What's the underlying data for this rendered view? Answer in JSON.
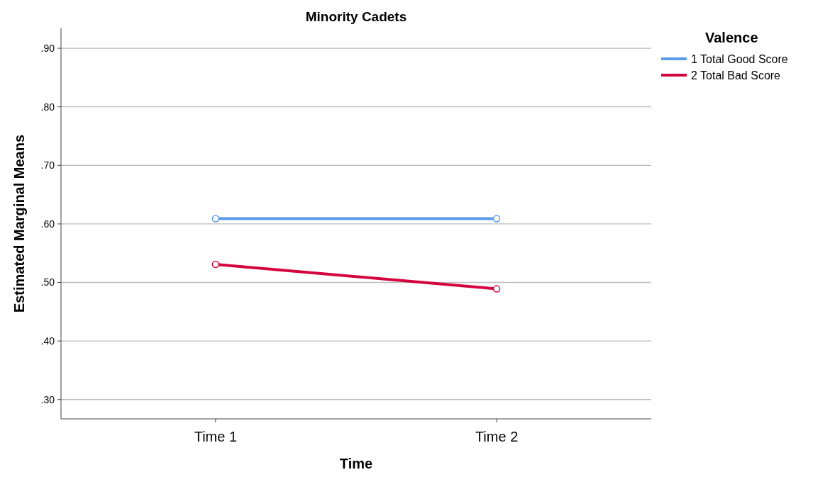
{
  "chart_data": {
    "type": "line",
    "title": "Minority Cadets",
    "xlabel": "Time",
    "ylabel": "Estimated Marginal Means",
    "legend_title": "Valence",
    "categories": [
      "Time 1",
      "Time 2"
    ],
    "series": [
      {
        "name": "1 Total Good Score",
        "color": "#5b9bea",
        "values": [
          0.609,
          0.609
        ]
      },
      {
        "name": "2 Total Bad Score",
        "color": "#d4043e",
        "values": [
          0.531,
          0.489
        ]
      }
    ],
    "ylim": [
      0.267,
      0.934
    ],
    "yticks": [
      {
        "value": 0.3,
        "label": ".30"
      },
      {
        "value": 0.4,
        "label": ".40"
      },
      {
        "value": 0.5,
        "label": ".50"
      },
      {
        "value": 0.6,
        "label": ".60"
      },
      {
        "value": 0.7,
        "label": ".70"
      },
      {
        "value": 0.8,
        "label": ".80"
      },
      {
        "value": 0.9,
        "label": ".90"
      }
    ],
    "grid": "y",
    "legend": "top right",
    "marker": "circle",
    "line_style": "solid"
  }
}
